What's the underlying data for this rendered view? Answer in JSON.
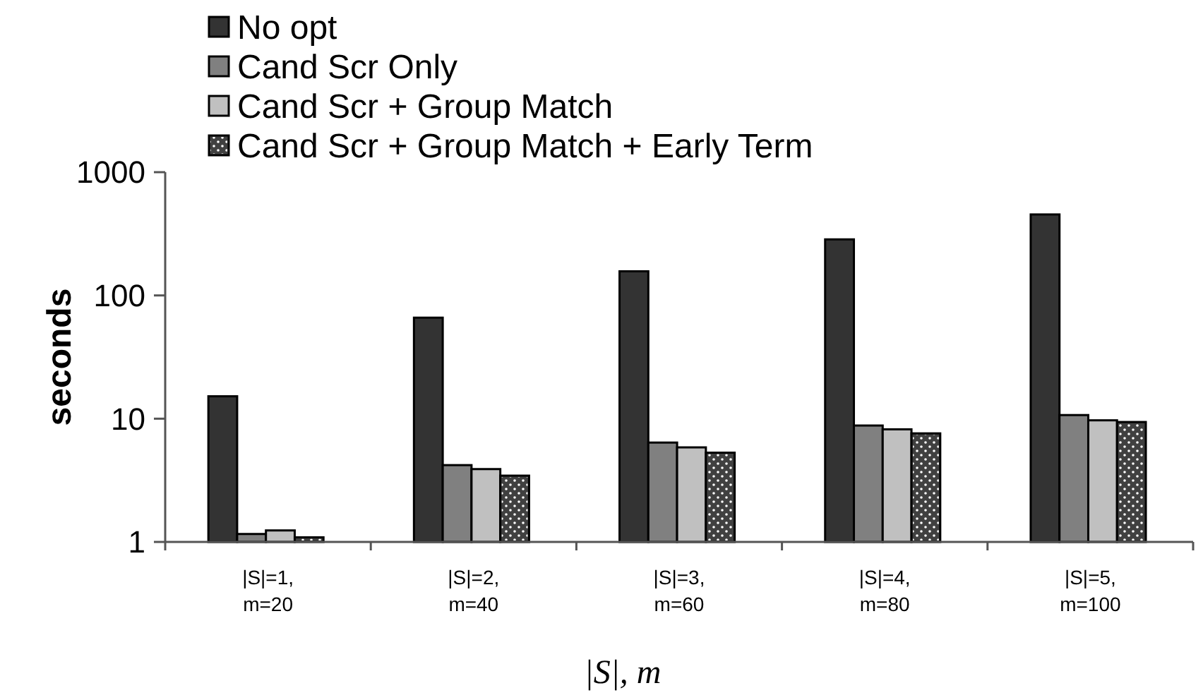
{
  "chart_data": {
    "type": "bar",
    "xlabel": "|S|, m",
    "ylabel": "seconds",
    "categories": [
      "|S|=1,\nm=20",
      "|S|=2,\nm=40",
      "|S|=3,\nm=60",
      "|S|=4,\nm=80",
      "|S|=5,\nm=100"
    ],
    "series": [
      {
        "name": "No opt",
        "color": "#333333",
        "values": [
          15.2,
          66,
          157,
          285,
          454
        ]
      },
      {
        "name": "Cand Scr Only",
        "color": "#808080",
        "values": [
          1.16,
          4.2,
          6.4,
          8.8,
          10.7
        ]
      },
      {
        "name": "Cand Scr + Group Match",
        "color": "#c0c0c0",
        "values": [
          1.24,
          3.9,
          5.85,
          8.2,
          9.7
        ]
      },
      {
        "name": "Cand Scr + Group Match + Early Term",
        "color": "#404040",
        "values": [
          1.09,
          3.45,
          5.3,
          7.6,
          9.4
        ]
      }
    ],
    "log": true,
    "ylim": [
      1,
      1000
    ],
    "yticks": [
      1,
      10,
      100,
      1000
    ],
    "grid": false,
    "legend": "top left"
  }
}
